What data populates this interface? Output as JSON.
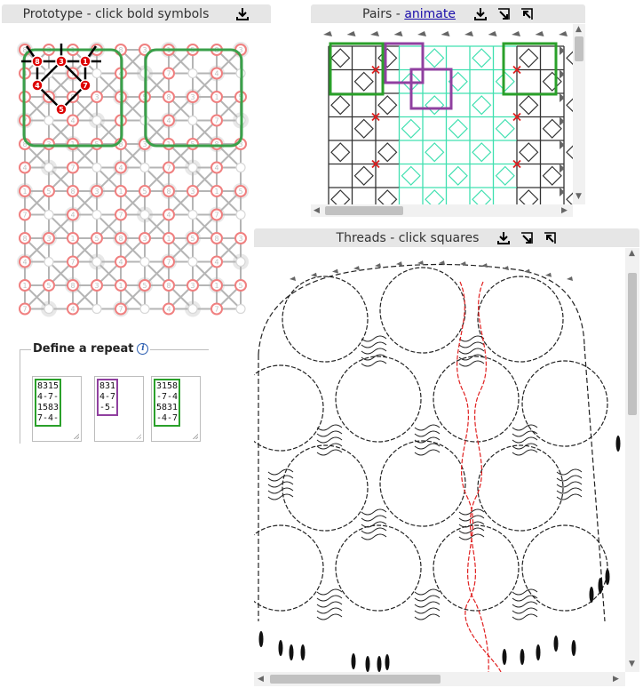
{
  "prototype": {
    "title": "Prototype - click bold symbols",
    "codes": [
      "8",
      "3",
      "1",
      "5",
      "4",
      "-",
      "7",
      "-",
      "1",
      "5",
      "8",
      "3",
      "7",
      "-",
      "4",
      "-"
    ],
    "center_highlight": [
      "8",
      "3",
      "1",
      "4",
      "7",
      "5"
    ],
    "colors": {
      "highlight_box": "#3aa04a",
      "stitch": "#f08080",
      "bold": "#dd0000"
    }
  },
  "pairs": {
    "title_prefix": "Pairs - ",
    "animate_link": "animate",
    "colors": {
      "green": "#2aa02a",
      "purple": "#9040a0",
      "teal": "#40e0b0"
    }
  },
  "threads": {
    "title": "Threads - click squares",
    "colors": {
      "thread": "#222222",
      "highlight": "#e02020"
    }
  },
  "repeat": {
    "legend": "Define a repeat",
    "info_icon": "i",
    "boxes": [
      {
        "lines": [
          "8315",
          "4-7-",
          "1583",
          "7-4-"
        ],
        "color": "#2aa02a"
      },
      {
        "lines": [
          "831",
          "4-7",
          "-5-"
        ],
        "color": "#9040a0"
      },
      {
        "lines": [
          "3158",
          "-7-4",
          "5831",
          "-4-7"
        ],
        "color": "#2aa02a"
      }
    ]
  }
}
